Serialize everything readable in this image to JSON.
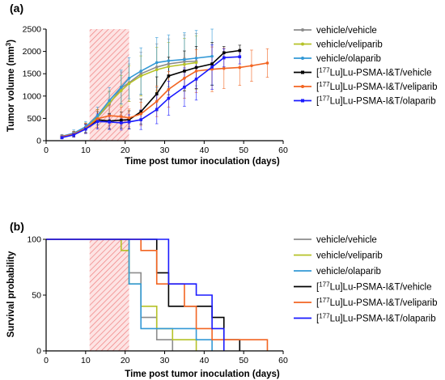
{
  "chart_data": [
    {
      "panel_label": "(a)",
      "type": "line",
      "xlabel": "Time post tumor inoculation (days)",
      "ylabel": "Tumor volume (mm",
      "ylabel_sup": "3",
      "ylabel_end": ")",
      "xlim": [
        0,
        60
      ],
      "ylim": [
        0,
        2500
      ],
      "xticks": [
        0,
        10,
        20,
        30,
        40,
        50,
        60
      ],
      "yticks": [
        0,
        500,
        1000,
        1500,
        2000,
        2500
      ],
      "shaded_region": [
        11,
        21
      ],
      "series": [
        {
          "name": "vehicle/vehicle",
          "color": "#8c8c8c",
          "marker": "circle",
          "x": [
            4,
            7,
            10,
            13,
            16,
            19,
            21,
            24,
            28,
            31,
            35,
            38
          ],
          "y": [
            80,
            140,
            280,
            520,
            820,
            1180,
            1300,
            1500,
            1650,
            1720,
            1770,
            1780
          ],
          "err": [
            40,
            60,
            110,
            180,
            280,
            360,
            420,
            480,
            520,
            560,
            600,
            620
          ]
        },
        {
          "name": "vehicle/veliparib",
          "color": "#b5c227",
          "marker": "circle",
          "x": [
            4,
            7,
            10,
            13,
            16,
            19,
            21,
            24,
            28,
            31,
            35,
            38
          ],
          "y": [
            90,
            150,
            290,
            530,
            850,
            1120,
            1280,
            1450,
            1590,
            1660,
            1710,
            1750
          ],
          "err": [
            40,
            60,
            110,
            170,
            260,
            340,
            400,
            450,
            500,
            540,
            580,
            600
          ]
        },
        {
          "name": "vehicle/olaparib",
          "color": "#3399d6",
          "marker": "circle",
          "x": [
            4,
            7,
            10,
            13,
            16,
            19,
            21,
            24,
            28,
            31,
            35,
            38,
            42
          ],
          "y": [
            100,
            170,
            310,
            560,
            900,
            1200,
            1400,
            1560,
            1750,
            1790,
            1820,
            1850,
            1890
          ],
          "err": [
            40,
            70,
            120,
            190,
            290,
            380,
            460,
            520,
            560,
            580,
            600,
            620,
            640
          ]
        },
        {
          "name": "[177Lu]Lu-PSMA-I&T/vehicle",
          "color": "#000000",
          "marker": "square",
          "x": [
            4,
            7,
            10,
            13,
            16,
            19,
            21,
            24,
            28,
            31,
            35,
            38,
            42,
            45,
            49
          ],
          "y": [
            80,
            140,
            270,
            470,
            440,
            460,
            470,
            650,
            1050,
            1450,
            1560,
            1640,
            1720,
            1970,
            2020
          ],
          "err": [
            30,
            60,
            100,
            180,
            170,
            180,
            200,
            280,
            380,
            420,
            450,
            470,
            480,
            140,
            120
          ]
        },
        {
          "name": "[177Lu]Lu-PSMA-I&T/veliparib",
          "color": "#f26522",
          "marker": "circle",
          "x": [
            4,
            7,
            10,
            13,
            16,
            19,
            21,
            24,
            28,
            31,
            35,
            38,
            42,
            45,
            49,
            52,
            56
          ],
          "y": [
            90,
            150,
            280,
            490,
            560,
            540,
            510,
            600,
            880,
            1150,
            1400,
            1560,
            1600,
            1620,
            1640,
            1680,
            1740
          ],
          "err": [
            40,
            60,
            110,
            200,
            220,
            210,
            200,
            260,
            340,
            400,
            450,
            480,
            500,
            450,
            400,
            350,
            320
          ]
        },
        {
          "name": "[177Lu]Lu-PSMA-I&T/olaparib",
          "color": "#1a1aff",
          "marker": "square",
          "x": [
            4,
            7,
            10,
            13,
            16,
            19,
            21,
            24,
            28,
            31,
            35,
            38,
            42,
            45,
            49
          ],
          "y": [
            70,
            130,
            260,
            430,
            420,
            400,
            420,
            470,
            700,
            950,
            1200,
            1380,
            1650,
            1860,
            1880
          ],
          "err": [
            30,
            50,
            100,
            170,
            170,
            160,
            160,
            220,
            320,
            380,
            430,
            470,
            500,
            200,
            160
          ]
        }
      ]
    },
    {
      "panel_label": "(b)",
      "type": "line",
      "subtype": "kaplan-meier",
      "xlabel": "Time post tumor inoculation (days)",
      "ylabel": "Survival probability",
      "xlim": [
        0,
        60
      ],
      "ylim": [
        0,
        100
      ],
      "xticks": [
        0,
        10,
        20,
        30,
        40,
        50,
        60
      ],
      "yticks": [
        0,
        50,
        100
      ],
      "shaded_region": [
        11,
        21
      ],
      "series": [
        {
          "name": "vehicle/vehicle",
          "color": "#8c8c8c",
          "steps": [
            [
              0,
              100
            ],
            [
              21,
              100
            ],
            [
              21,
              70
            ],
            [
              24,
              70
            ],
            [
              24,
              30
            ],
            [
              28,
              30
            ],
            [
              28,
              10
            ],
            [
              32,
              10
            ],
            [
              32,
              0
            ]
          ]
        },
        {
          "name": "vehicle/veliparib",
          "color": "#b5c227",
          "steps": [
            [
              0,
              100
            ],
            [
              19,
              100
            ],
            [
              19,
              90
            ],
            [
              21,
              90
            ],
            [
              21,
              60
            ],
            [
              24,
              60
            ],
            [
              24,
              40
            ],
            [
              28,
              40
            ],
            [
              28,
              20
            ],
            [
              32,
              20
            ],
            [
              32,
              10
            ],
            [
              38,
              10
            ],
            [
              38,
              0
            ]
          ]
        },
        {
          "name": "vehicle/olaparib",
          "color": "#3399d6",
          "steps": [
            [
              0,
              100
            ],
            [
              21,
              100
            ],
            [
              21,
              60
            ],
            [
              24,
              60
            ],
            [
              24,
              20
            ],
            [
              38,
              20
            ],
            [
              38,
              10
            ],
            [
              42,
              10
            ],
            [
              42,
              0
            ]
          ]
        },
        {
          "name": "[177Lu]Lu-PSMA-I&T/vehicle",
          "color": "#000000",
          "steps": [
            [
              0,
              100
            ],
            [
              28,
              100
            ],
            [
              28,
              70
            ],
            [
              31,
              70
            ],
            [
              31,
              40
            ],
            [
              42,
              40
            ],
            [
              42,
              30
            ],
            [
              45,
              30
            ],
            [
              45,
              10
            ],
            [
              49,
              10
            ],
            [
              49,
              0
            ]
          ]
        },
        {
          "name": "[177Lu]Lu-PSMA-I&T/veliparib",
          "color": "#f26522",
          "steps": [
            [
              0,
              100
            ],
            [
              24,
              100
            ],
            [
              24,
              90
            ],
            [
              28,
              90
            ],
            [
              28,
              60
            ],
            [
              35,
              60
            ],
            [
              35,
              40
            ],
            [
              38,
              40
            ],
            [
              38,
              20
            ],
            [
              42,
              20
            ],
            [
              42,
              10
            ],
            [
              56,
              10
            ],
            [
              56,
              0
            ]
          ]
        },
        {
          "name": "[177Lu]Lu-PSMA-I&T/olaparib",
          "color": "#1a1aff",
          "steps": [
            [
              0,
              100
            ],
            [
              31,
              100
            ],
            [
              31,
              60
            ],
            [
              38,
              60
            ],
            [
              38,
              50
            ],
            [
              42,
              50
            ],
            [
              42,
              20
            ],
            [
              45,
              20
            ],
            [
              45,
              0
            ]
          ]
        }
      ]
    }
  ],
  "legend": [
    {
      "pre": "vehicle/vehicle",
      "sup": "",
      "post": "",
      "color": "#8c8c8c"
    },
    {
      "pre": "vehicle/veliparib",
      "sup": "",
      "post": "",
      "color": "#b5c227"
    },
    {
      "pre": "vehicle/olaparib",
      "sup": "",
      "post": "",
      "color": "#3399d6"
    },
    {
      "pre": "[",
      "sup": "177",
      "post": "Lu]Lu-PSMA-I&T/vehicle",
      "color": "#000000"
    },
    {
      "pre": "[",
      "sup": "177",
      "post": "Lu]Lu-PSMA-I&T/veliparib",
      "color": "#f26522"
    },
    {
      "pre": "[",
      "sup": "177",
      "post": "Lu]Lu-PSMA-I&T/olaparib",
      "color": "#1a1aff"
    }
  ]
}
